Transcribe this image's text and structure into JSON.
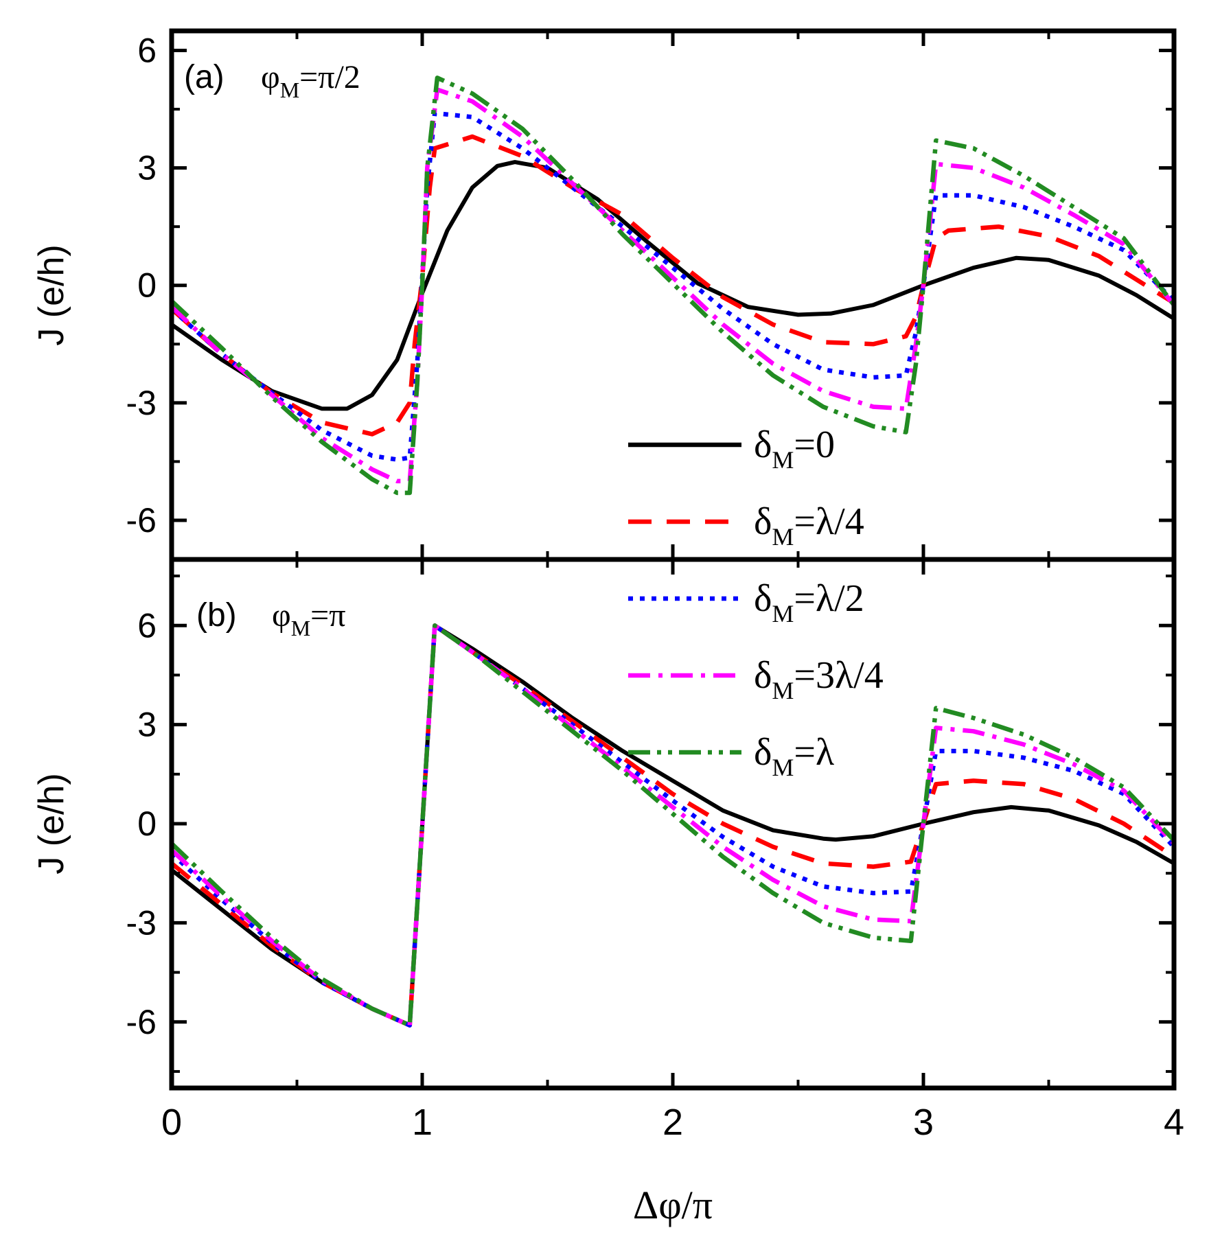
{
  "chart_data": [
    {
      "type": "line",
      "panel_label": "(a)",
      "panel_param": "φ",
      "panel_param_sub": "M",
      "panel_param_value": "=π/2",
      "xlabel": "",
      "ylabel": "J (e/h)",
      "xlim": [
        0,
        4
      ],
      "ylim": [
        -7,
        6.5
      ],
      "yticks": [
        -6,
        -3,
        0,
        3,
        6
      ],
      "ytick_labels": [
        "-6",
        "-3",
        "0",
        "3",
        "6"
      ],
      "series": [
        {
          "name": "δM=0",
          "color": "#000000",
          "dash": "solid",
          "x": [
            0,
            0.2,
            0.4,
            0.6,
            0.7,
            0.8,
            0.9,
            1.0,
            1.1,
            1.2,
            1.3,
            1.37,
            1.5,
            1.7,
            1.9,
            2.1,
            2.3,
            2.5,
            2.63,
            2.8,
            3.0,
            3.2,
            3.37,
            3.5,
            3.7,
            3.85,
            4.0
          ],
          "y": [
            -1.0,
            -1.9,
            -2.7,
            -3.15,
            -3.15,
            -2.8,
            -1.9,
            -0.2,
            1.4,
            2.5,
            3.05,
            3.15,
            3.0,
            2.2,
            1.1,
            0.05,
            -0.55,
            -0.75,
            -0.72,
            -0.5,
            0.0,
            0.45,
            0.7,
            0.65,
            0.25,
            -0.25,
            -0.85
          ]
        },
        {
          "name": "δM=λ/4",
          "color": "#ff0000",
          "dash": "dashed",
          "x": [
            0,
            0.2,
            0.4,
            0.6,
            0.8,
            0.9,
            0.95,
            0.97,
            1.0,
            1.03,
            1.05,
            1.2,
            1.4,
            1.6,
            1.8,
            2.0,
            2.2,
            2.4,
            2.6,
            2.8,
            2.93,
            2.97,
            3.0,
            3.05,
            3.1,
            3.3,
            3.5,
            3.7,
            4.0
          ],
          "y": [
            -0.6,
            -1.75,
            -2.75,
            -3.5,
            -3.8,
            -3.5,
            -3.0,
            -1.5,
            0.2,
            2.5,
            3.5,
            3.8,
            3.3,
            2.5,
            1.8,
            0.7,
            -0.3,
            -1.0,
            -1.45,
            -1.5,
            -1.3,
            -0.8,
            0.0,
            1.2,
            1.4,
            1.5,
            1.25,
            0.75,
            -0.45
          ]
        },
        {
          "name": "δM=λ/2",
          "color": "#0000ff",
          "dash": "dotted",
          "x": [
            0,
            0.2,
            0.4,
            0.6,
            0.8,
            0.9,
            0.95,
            0.98,
            1.0,
            1.02,
            1.05,
            1.2,
            1.4,
            1.6,
            1.8,
            2.0,
            2.2,
            2.4,
            2.6,
            2.8,
            2.93,
            2.97,
            3.0,
            3.05,
            3.2,
            3.4,
            3.6,
            3.8,
            4.0
          ],
          "y": [
            -0.6,
            -1.75,
            -2.75,
            -3.7,
            -4.35,
            -4.45,
            -4.4,
            -2.0,
            0.2,
            2.5,
            4.4,
            4.3,
            3.5,
            2.5,
            1.5,
            0.45,
            -0.6,
            -1.5,
            -2.15,
            -2.35,
            -2.3,
            -1.2,
            0.0,
            2.3,
            2.3,
            2.0,
            1.5,
            0.9,
            -0.4
          ]
        },
        {
          "name": "δM=3λ/4",
          "color": "#ff00ff",
          "dash": "dashdot",
          "x": [
            0,
            0.2,
            0.4,
            0.6,
            0.8,
            0.9,
            0.95,
            0.98,
            1.0,
            1.02,
            1.06,
            1.2,
            1.4,
            1.6,
            1.8,
            2.0,
            2.2,
            2.4,
            2.6,
            2.8,
            2.93,
            2.97,
            3.0,
            3.05,
            3.2,
            3.4,
            3.6,
            3.8,
            4.0
          ],
          "y": [
            -0.55,
            -1.75,
            -2.8,
            -3.9,
            -4.7,
            -5.0,
            -5.0,
            -2.5,
            0.0,
            3.0,
            5.0,
            4.7,
            3.8,
            2.6,
            1.4,
            0.2,
            -1.0,
            -2.0,
            -2.7,
            -3.1,
            -3.15,
            -1.5,
            0.0,
            3.1,
            3.0,
            2.5,
            1.8,
            1.05,
            -0.5
          ]
        },
        {
          "name": "δM=λ",
          "color": "#228b22",
          "dash": "dashdotdot",
          "x": [
            0,
            0.2,
            0.4,
            0.6,
            0.8,
            0.9,
            0.95,
            0.98,
            1.0,
            1.02,
            1.06,
            1.2,
            1.4,
            1.6,
            1.8,
            2.0,
            2.2,
            2.4,
            2.6,
            2.8,
            2.93,
            2.97,
            3.0,
            3.05,
            3.2,
            3.4,
            3.6,
            3.8,
            4.0
          ],
          "y": [
            -0.4,
            -1.6,
            -2.85,
            -4.0,
            -4.95,
            -5.3,
            -5.3,
            -2.5,
            0.0,
            3.0,
            5.3,
            4.9,
            4.0,
            2.7,
            1.3,
            0.05,
            -1.2,
            -2.3,
            -3.1,
            -3.6,
            -3.75,
            -2.0,
            0.0,
            3.7,
            3.5,
            2.8,
            2.0,
            1.2,
            -0.5
          ]
        }
      ]
    },
    {
      "type": "line",
      "panel_label": "(b)",
      "panel_param": "φ",
      "panel_param_sub": "M",
      "panel_param_value": "=π",
      "xlabel": "Δφ/π",
      "ylabel": "J (e/h)",
      "xlim": [
        0,
        4
      ],
      "ylim": [
        -8,
        8
      ],
      "yticks": [
        -6,
        -3,
        0,
        3,
        6
      ],
      "ytick_labels": [
        "-6",
        "-3",
        "0",
        "3",
        "6"
      ],
      "xticks": [
        0,
        1,
        2,
        3,
        4
      ],
      "xtick_labels": [
        "0",
        "1",
        "2",
        "3",
        "4"
      ],
      "series": [
        {
          "name": "δM=0",
          "color": "#000000",
          "dash": "solid",
          "x": [
            0,
            0.2,
            0.4,
            0.6,
            0.8,
            0.95,
            1.05,
            1.2,
            1.4,
            1.6,
            1.8,
            2.0,
            2.2,
            2.4,
            2.6,
            2.65,
            2.8,
            3.0,
            3.2,
            3.35,
            3.5,
            3.7,
            3.85,
            4.0
          ],
          "y": [
            -1.4,
            -2.6,
            -3.8,
            -4.8,
            -5.6,
            -6.1,
            6.0,
            5.3,
            4.3,
            3.2,
            2.2,
            1.3,
            0.4,
            -0.2,
            -0.45,
            -0.48,
            -0.38,
            0.0,
            0.35,
            0.5,
            0.4,
            -0.05,
            -0.55,
            -1.2
          ]
        },
        {
          "name": "δM=λ/4",
          "color": "#ff0000",
          "dash": "dashed",
          "x": [
            0,
            0.2,
            0.4,
            0.6,
            0.8,
            0.95,
            1.05,
            1.2,
            1.4,
            1.6,
            1.8,
            2.0,
            2.2,
            2.4,
            2.6,
            2.8,
            2.95,
            3.0,
            3.05,
            3.2,
            3.4,
            3.6,
            3.8,
            4.0
          ],
          "y": [
            -1.2,
            -2.45,
            -3.7,
            -4.8,
            -5.6,
            -6.1,
            6.0,
            5.2,
            4.2,
            3.1,
            2.0,
            0.9,
            0.0,
            -0.7,
            -1.2,
            -1.3,
            -1.15,
            0.0,
            1.2,
            1.3,
            1.2,
            0.75,
            0.0,
            -1.0
          ]
        },
        {
          "name": "δM=λ/2",
          "color": "#0000ff",
          "dash": "dotted",
          "x": [
            0,
            0.2,
            0.4,
            0.6,
            0.8,
            0.95,
            1.05,
            1.2,
            1.4,
            1.6,
            1.8,
            2.0,
            2.2,
            2.4,
            2.6,
            2.8,
            2.95,
            3.0,
            3.05,
            3.2,
            3.4,
            3.6,
            3.8,
            4.0
          ],
          "y": [
            -0.9,
            -2.3,
            -3.6,
            -4.8,
            -5.6,
            -6.1,
            6.0,
            5.2,
            4.1,
            3.0,
            1.85,
            0.7,
            -0.4,
            -1.3,
            -1.9,
            -2.1,
            -2.05,
            0.0,
            2.2,
            2.2,
            2.0,
            1.6,
            0.9,
            -0.7
          ]
        },
        {
          "name": "δM=3λ/4",
          "color": "#ff00ff",
          "dash": "dashdot",
          "x": [
            0,
            0.2,
            0.4,
            0.6,
            0.8,
            0.95,
            1.05,
            1.2,
            1.4,
            1.6,
            1.8,
            2.0,
            2.2,
            2.4,
            2.6,
            2.8,
            2.95,
            3.0,
            3.05,
            3.2,
            3.4,
            3.6,
            3.8,
            4.0
          ],
          "y": [
            -0.8,
            -2.2,
            -3.55,
            -4.75,
            -5.6,
            -6.1,
            6.0,
            5.2,
            4.1,
            2.9,
            1.7,
            0.5,
            -0.7,
            -1.7,
            -2.5,
            -2.9,
            -2.95,
            0.0,
            2.9,
            2.8,
            2.4,
            1.8,
            1.0,
            -0.6
          ]
        },
        {
          "name": "δM=λ",
          "color": "#228b22",
          "dash": "dashdotdot",
          "x": [
            0,
            0.2,
            0.4,
            0.6,
            0.8,
            0.95,
            1.05,
            1.2,
            1.4,
            1.6,
            1.8,
            2.0,
            2.2,
            2.4,
            2.6,
            2.8,
            2.95,
            3.0,
            3.05,
            3.2,
            3.4,
            3.6,
            3.8,
            4.0
          ],
          "y": [
            -0.6,
            -2.05,
            -3.45,
            -4.7,
            -5.6,
            -6.1,
            6.0,
            5.2,
            4.0,
            2.8,
            1.6,
            0.3,
            -1.0,
            -2.1,
            -3.0,
            -3.45,
            -3.55,
            0.0,
            3.5,
            3.2,
            2.7,
            2.0,
            1.1,
            -0.5
          ]
        }
      ]
    }
  ],
  "legend": {
    "placement": "center-right spanning both panels",
    "entries": [
      {
        "prefix": "δ",
        "sub": "M",
        "suffix": "=0"
      },
      {
        "prefix": "δ",
        "sub": "M",
        "suffix": "=λ/4"
      },
      {
        "prefix": "δ",
        "sub": "M",
        "suffix": "=λ/2"
      },
      {
        "prefix": "δ",
        "sub": "M",
        "suffix": "=3λ/4"
      },
      {
        "prefix": "δ",
        "sub": "M",
        "suffix": "=λ"
      }
    ]
  }
}
